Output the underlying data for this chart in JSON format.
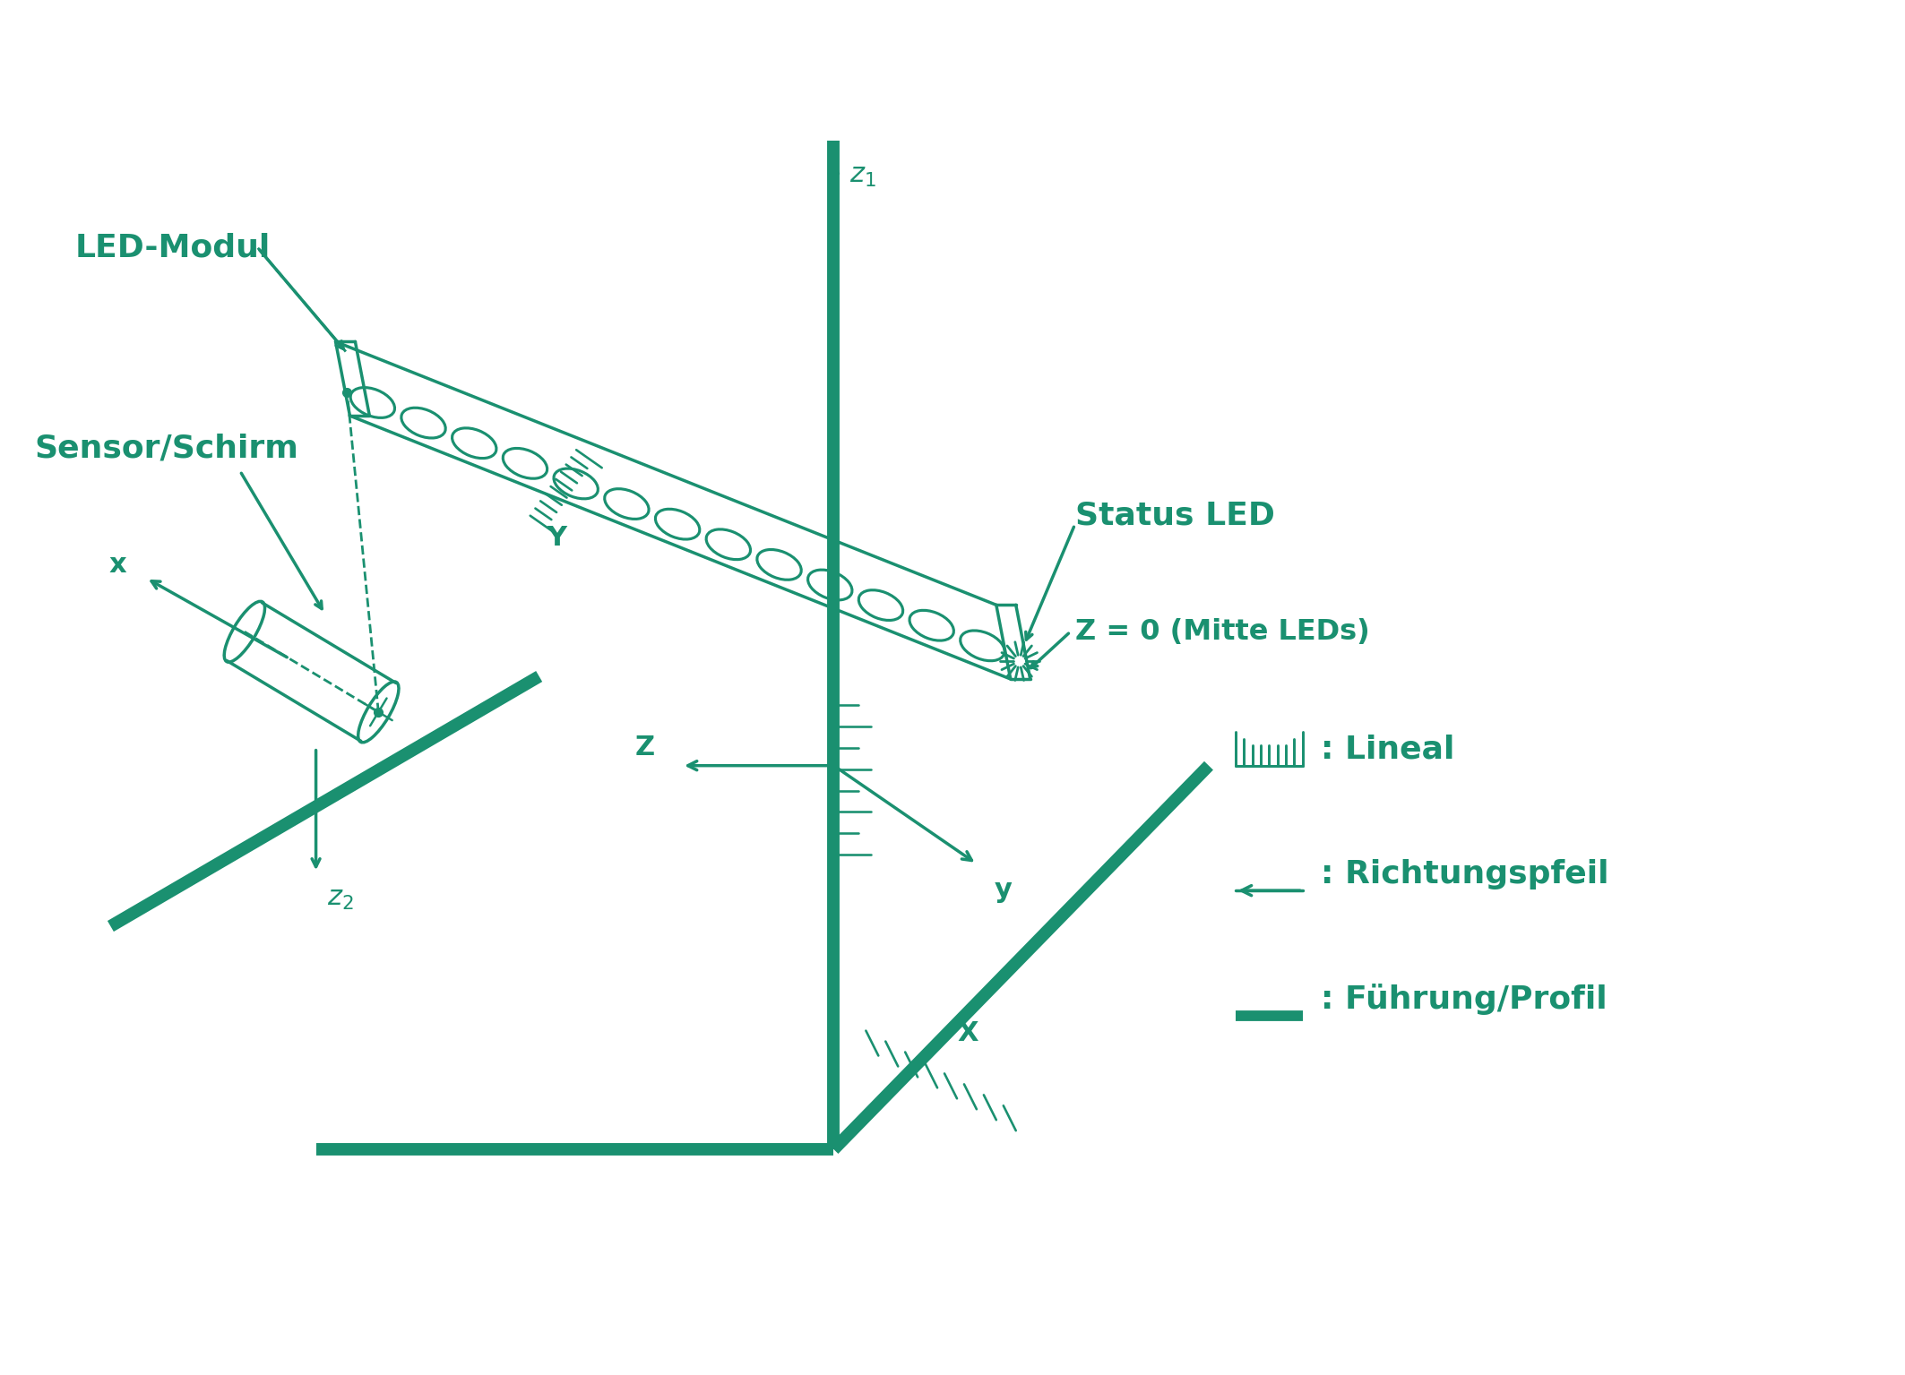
{
  "color": "#1a9070",
  "bg_color": "#ffffff",
  "lw": 2.5,
  "lw_thick": 10,
  "labels": {
    "led_modul": "LED-Modul",
    "sensor_schirm": "Sensor/Schirm",
    "status_led": "Status LED",
    "z0": "Z = 0 (Mitte LEDs)",
    "lineal": ": Lineal",
    "richtungspfeil": ": Richtungspfeil",
    "fuhrung": ": Führung/Profil"
  },
  "fs_label": 26,
  "fs_axis": 22
}
